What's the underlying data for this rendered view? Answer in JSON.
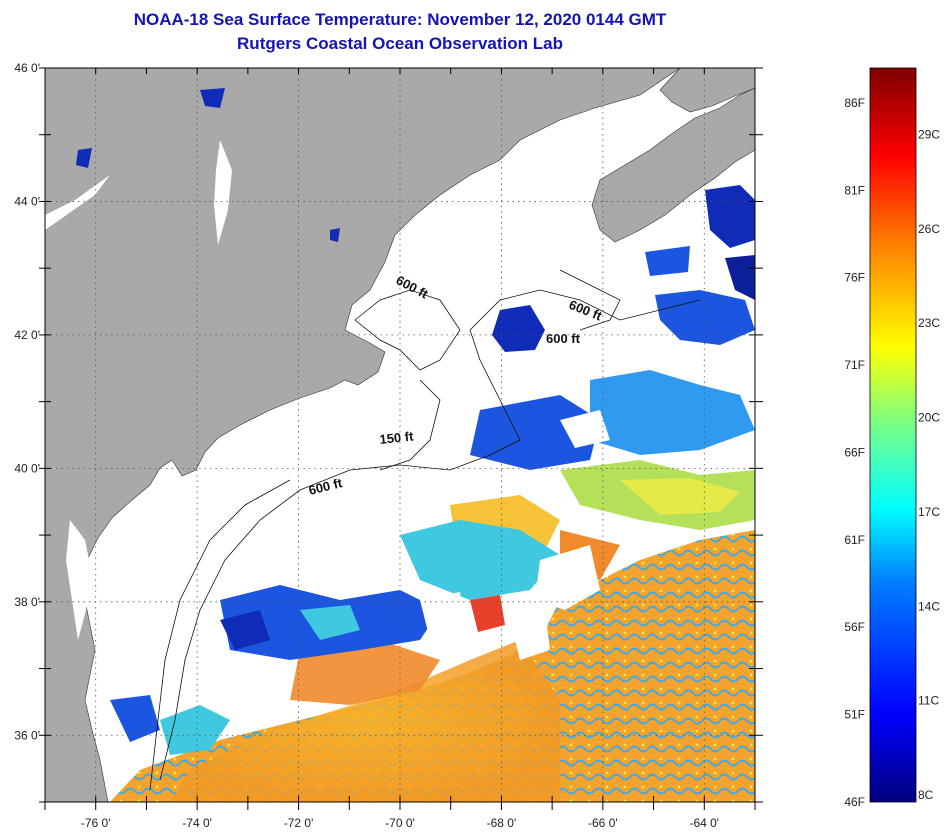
{
  "header": {
    "title": "NOAA-18 Sea Surface Temperature:  November 12, 2020 0144 GMT",
    "subtitle": "Rutgers Coastal Ocean Observation Lab"
  },
  "map": {
    "lon_range": [
      -77,
      -63
    ],
    "lat_range": [
      35,
      46
    ],
    "lon_ticks": [
      {
        "value": -76,
        "label": "-76 0'"
      },
      {
        "value": -74,
        "label": "-74 0'"
      },
      {
        "value": -72,
        "label": "-72 0'"
      },
      {
        "value": -70,
        "label": "-70 0'"
      },
      {
        "value": -68,
        "label": "-68 0'"
      },
      {
        "value": -66,
        "label": "-66 0'"
      },
      {
        "value": -64,
        "label": "-64 0'"
      }
    ],
    "lat_ticks": [
      {
        "value": 46,
        "label": "46 0'"
      },
      {
        "value": 44,
        "label": "44 0'"
      },
      {
        "value": 42,
        "label": "42 0'"
      },
      {
        "value": 40,
        "label": "40 0'"
      },
      {
        "value": 38,
        "label": "38 0'"
      },
      {
        "value": 36,
        "label": "36 0'"
      }
    ],
    "contour_labels": [
      {
        "text": "600 ft"
      },
      {
        "text": "600 ft"
      },
      {
        "text": "600 ft"
      },
      {
        "text": "150 ft"
      },
      {
        "text": "600 ft"
      }
    ],
    "colors": {
      "land": "#a9a9a9",
      "cloud": "#ffffff",
      "grid": "#555555"
    }
  },
  "colorbar": {
    "fahrenheit_labels": [
      "86F",
      "81F",
      "76F",
      "71F",
      "66F",
      "61F",
      "56F",
      "51F",
      "46F"
    ],
    "celsius_labels": [
      "29C",
      "26C",
      "23C",
      "20C",
      "17C",
      "14C",
      "11C",
      "8C"
    ],
    "min_f": 46,
    "max_f": 88,
    "gradient_stops": [
      "#00007f",
      "#0000ff",
      "#007fff",
      "#00ffff",
      "#7fff7f",
      "#ffff00",
      "#ff7f00",
      "#ff0000",
      "#7f0000"
    ]
  }
}
